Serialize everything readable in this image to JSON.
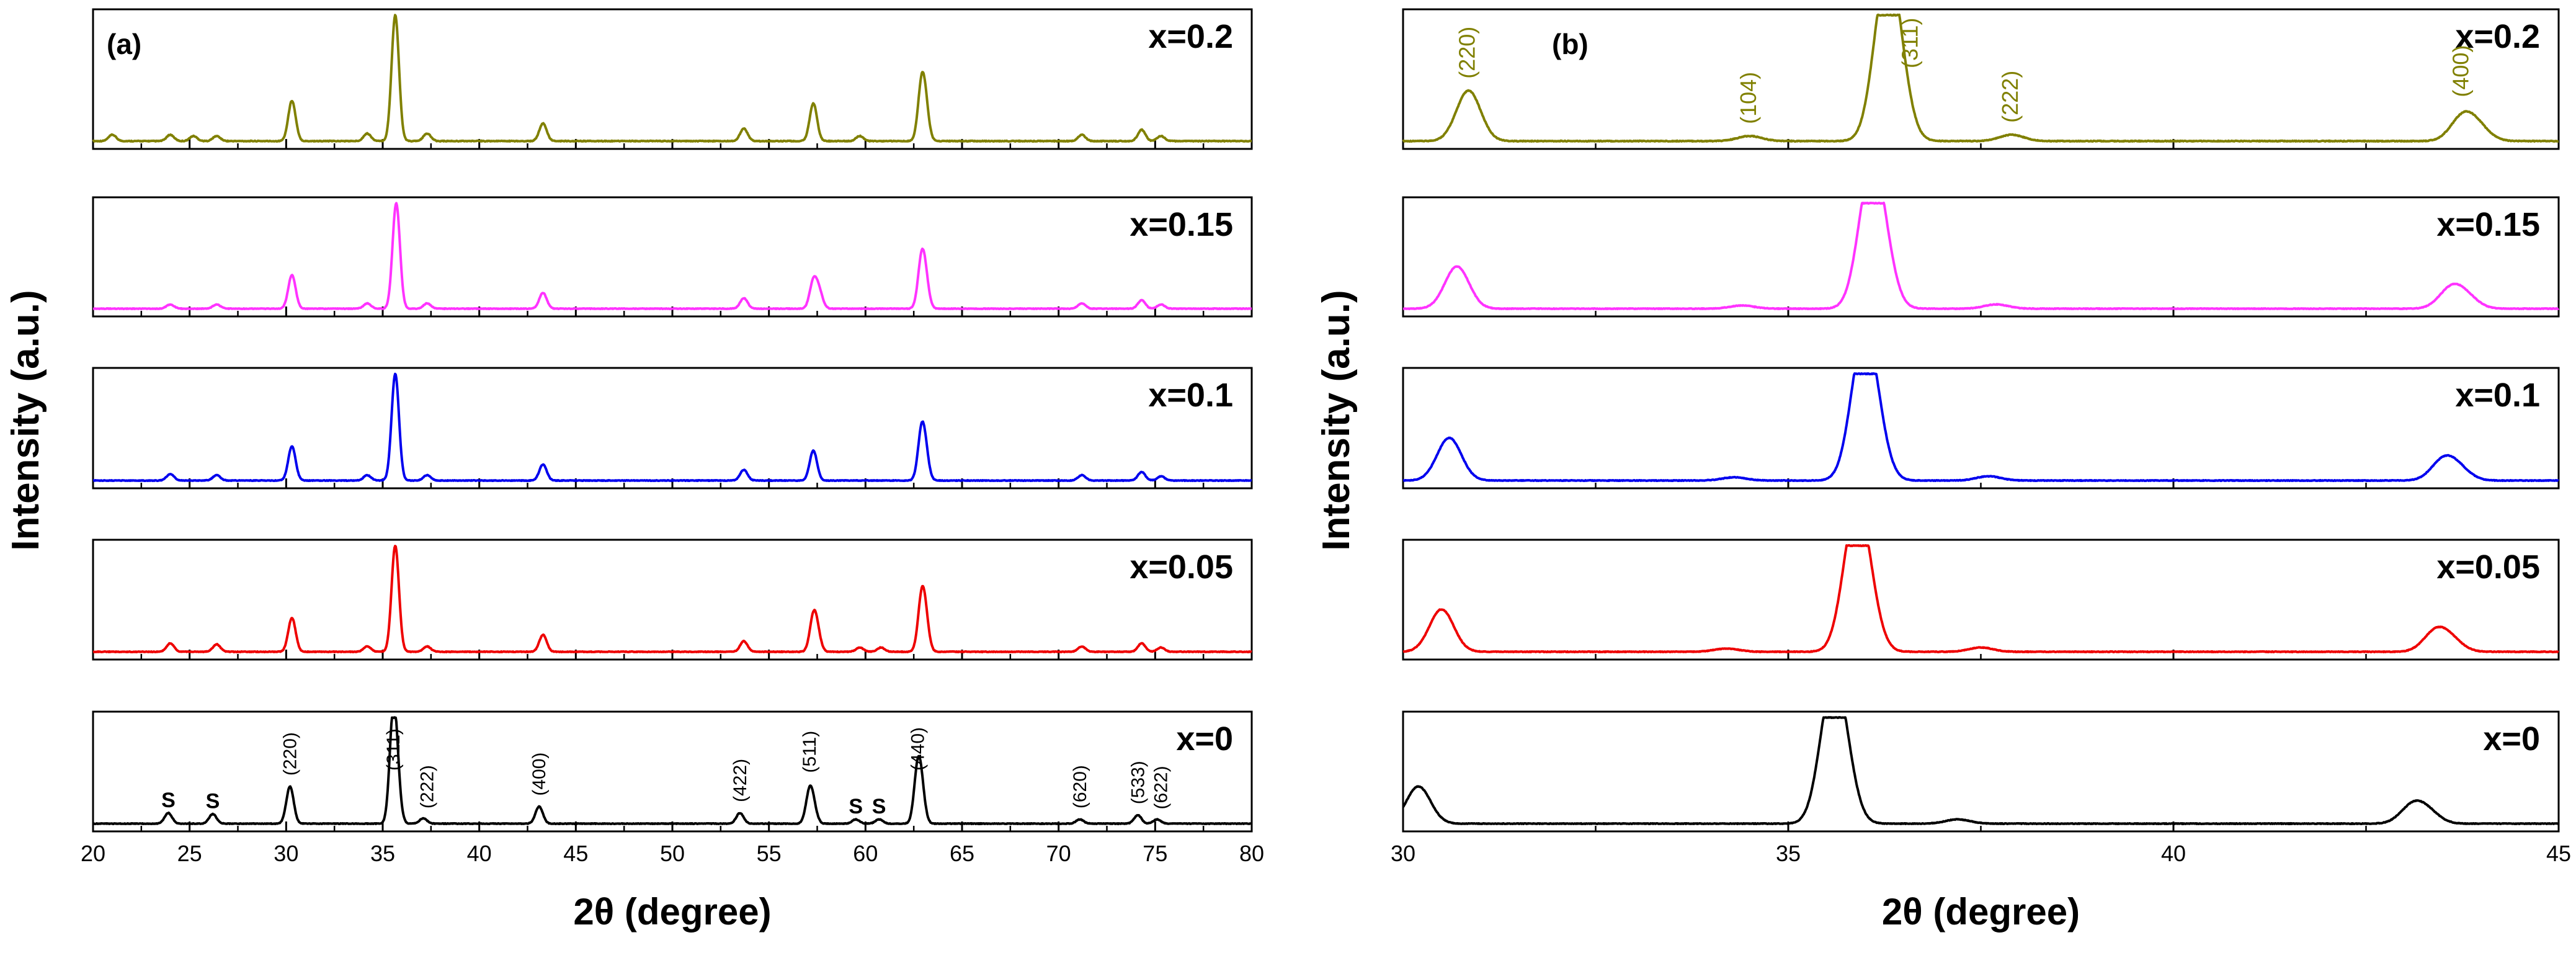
{
  "chart_data": [
    {
      "type": "line",
      "panel": "(a)",
      "xlabel": "2θ (degree)",
      "ylabel": "Intensity (a.u.)",
      "xlim": [
        20,
        80
      ],
      "xticks": [
        20,
        25,
        30,
        35,
        40,
        45,
        50,
        55,
        60,
        65,
        70,
        75,
        80
      ],
      "series": [
        {
          "name": "x=0.2",
          "color": "#808000",
          "shift": 0.6,
          "peaks": [
            [
              21.0,
              0.05
            ],
            [
              24.0,
              0.05
            ],
            [
              25.2,
              0.04
            ],
            [
              26.4,
              0.04
            ],
            [
              30.3,
              0.32
            ],
            [
              34.2,
              0.06
            ],
            [
              35.65,
              1.0
            ],
            [
              37.3,
              0.06
            ],
            [
              43.3,
              0.14
            ],
            [
              53.7,
              0.1
            ],
            [
              57.3,
              0.3
            ],
            [
              59.7,
              0.04
            ],
            [
              62.9,
              0.4
            ],
            [
              63.1,
              0.22
            ],
            [
              71.2,
              0.05
            ],
            [
              74.3,
              0.09
            ],
            [
              75.3,
              0.04
            ]
          ]
        },
        {
          "name": "x=0.15",
          "color": "#ff33ff",
          "shift": 0.3,
          "peaks": [
            [
              24.0,
              0.04
            ],
            [
              26.4,
              0.04
            ],
            [
              30.3,
              0.32
            ],
            [
              34.2,
              0.05
            ],
            [
              35.7,
              1.0
            ],
            [
              37.3,
              0.05
            ],
            [
              43.3,
              0.15
            ],
            [
              53.7,
              0.1
            ],
            [
              57.3,
              0.25
            ],
            [
              57.6,
              0.15
            ],
            [
              62.9,
              0.42
            ],
            [
              63.1,
              0.22
            ],
            [
              71.2,
              0.05
            ],
            [
              74.3,
              0.08
            ],
            [
              75.3,
              0.04
            ]
          ]
        },
        {
          "name": "x=0.1",
          "color": "#0000ee",
          "shift": 0.2,
          "peaks": [
            [
              24.0,
              0.06
            ],
            [
              26.4,
              0.05
            ],
            [
              30.3,
              0.32
            ],
            [
              34.2,
              0.05
            ],
            [
              35.65,
              1.0
            ],
            [
              37.3,
              0.05
            ],
            [
              43.3,
              0.15
            ],
            [
              53.7,
              0.1
            ],
            [
              57.3,
              0.28
            ],
            [
              62.9,
              0.42
            ],
            [
              63.1,
              0.2
            ],
            [
              71.2,
              0.05
            ],
            [
              74.3,
              0.08
            ],
            [
              75.3,
              0.04
            ]
          ]
        },
        {
          "name": "x=0.05",
          "color": "#ee0000",
          "shift": 0.1,
          "peaks": [
            [
              24.0,
              0.08
            ],
            [
              26.4,
              0.07
            ],
            [
              30.3,
              0.32
            ],
            [
              34.2,
              0.05
            ],
            [
              35.65,
              1.0
            ],
            [
              37.3,
              0.05
            ],
            [
              43.3,
              0.16
            ],
            [
              53.7,
              0.1
            ],
            [
              57.3,
              0.3
            ],
            [
              57.5,
              0.14
            ],
            [
              59.7,
              0.04
            ],
            [
              60.8,
              0.04
            ],
            [
              62.9,
              0.45
            ],
            [
              63.1,
              0.25
            ],
            [
              71.2,
              0.05
            ],
            [
              74.3,
              0.08
            ],
            [
              75.3,
              0.04
            ]
          ]
        },
        {
          "name": "x=0",
          "color": "#000000",
          "shift": 0.0,
          "peaks": [
            [
              23.9,
              0.1
            ],
            [
              26.2,
              0.09
            ],
            [
              30.2,
              0.35
            ],
            [
              35.55,
              1.0
            ],
            [
              35.75,
              0.25
            ],
            [
              37.1,
              0.05
            ],
            [
              43.1,
              0.16
            ],
            [
              53.5,
              0.1
            ],
            [
              57.1,
              0.28
            ],
            [
              57.3,
              0.12
            ],
            [
              59.5,
              0.04
            ],
            [
              60.7,
              0.04
            ],
            [
              62.7,
              0.47
            ],
            [
              62.9,
              0.25
            ],
            [
              71.1,
              0.04
            ],
            [
              74.1,
              0.08
            ],
            [
              75.1,
              0.04
            ]
          ]
        }
      ],
      "annotations": [
        {
          "text": "S",
          "x": 23.9,
          "series": "x=0"
        },
        {
          "text": "S",
          "x": 26.2,
          "series": "x=0"
        },
        {
          "text": "(220)",
          "x": 30.2,
          "series": "x=0"
        },
        {
          "text": "(311)",
          "x": 35.55,
          "series": "x=0"
        },
        {
          "text": "(222)",
          "x": 37.3,
          "series": "x=0"
        },
        {
          "text": "(400)",
          "x": 43.1,
          "series": "x=0"
        },
        {
          "text": "(422)",
          "x": 53.5,
          "series": "x=0"
        },
        {
          "text": "(511)",
          "x": 57.1,
          "series": "x=0"
        },
        {
          "text": "S",
          "x": 59.5,
          "series": "x=0"
        },
        {
          "text": "S",
          "x": 60.7,
          "series": "x=0"
        },
        {
          "text": "(440)",
          "x": 62.7,
          "series": "x=0"
        },
        {
          "text": "(620)",
          "x": 71.1,
          "series": "x=0"
        },
        {
          "text": "(533)",
          "x": 74.1,
          "series": "x=0"
        },
        {
          "text": "(622)",
          "x": 75.3,
          "series": "x=0"
        }
      ]
    },
    {
      "type": "line",
      "panel": "(b)",
      "xlabel": "2θ (degree)",
      "ylabel": "Intensity (a.u.)",
      "xlim": [
        30,
        45
      ],
      "xticks": [
        30,
        35,
        40,
        45
      ],
      "series": [
        {
          "name": "x=0.2",
          "color": "#808000",
          "peaks": [
            [
              30.85,
              0.4
            ],
            [
              34.5,
              0.04
            ],
            [
              36.25,
              1.0
            ],
            [
              36.4,
              0.55
            ],
            [
              37.9,
              0.05
            ],
            [
              43.75,
              0.18
            ],
            [
              43.95,
              0.1
            ]
          ]
        },
        {
          "name": "x=0.15",
          "color": "#ff33ff",
          "peaks": [
            [
              30.7,
              0.4
            ],
            [
              34.4,
              0.03
            ],
            [
              36.05,
              1.0
            ],
            [
              36.2,
              0.55
            ],
            [
              37.7,
              0.04
            ],
            [
              43.6,
              0.18
            ],
            [
              43.8,
              0.1
            ]
          ]
        },
        {
          "name": "x=0.1",
          "color": "#0000ee",
          "peaks": [
            [
              30.6,
              0.4
            ],
            [
              34.3,
              0.03
            ],
            [
              35.95,
              1.0
            ],
            [
              36.1,
              0.55
            ],
            [
              37.6,
              0.04
            ],
            [
              43.5,
              0.18
            ],
            [
              43.7,
              0.1
            ]
          ]
        },
        {
          "name": "x=0.05",
          "color": "#ee0000",
          "peaks": [
            [
              30.5,
              0.4
            ],
            [
              34.2,
              0.03
            ],
            [
              35.85,
              1.0
            ],
            [
              36.0,
              0.55
            ],
            [
              37.5,
              0.04
            ],
            [
              43.4,
              0.18
            ],
            [
              43.6,
              0.1
            ]
          ]
        },
        {
          "name": "x=0",
          "color": "#000000",
          "peaks": [
            [
              30.2,
              0.35
            ],
            [
              35.55,
              1.0
            ],
            [
              35.7,
              0.55
            ],
            [
              37.2,
              0.04
            ],
            [
              43.1,
              0.16
            ],
            [
              43.3,
              0.1
            ]
          ]
        }
      ],
      "annotations": [
        {
          "text": "(220)",
          "x": 30.85,
          "series": "x=0.2"
        },
        {
          "text": "(104)",
          "x": 34.5,
          "series": "x=0.2"
        },
        {
          "text": "(311)",
          "x": 36.6,
          "series": "x=0.2"
        },
        {
          "text": "(222)",
          "x": 37.9,
          "series": "x=0.2"
        },
        {
          "text": "(400)",
          "x": 43.75,
          "series": "x=0.2"
        }
      ]
    }
  ]
}
